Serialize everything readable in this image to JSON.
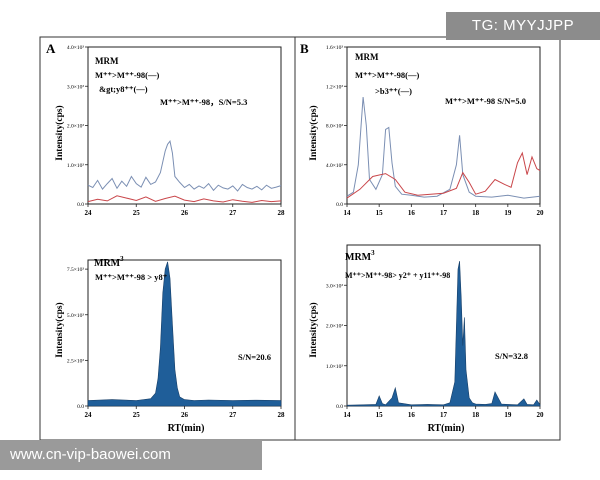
{
  "watermarks": {
    "top": "TG: MYYJJPP",
    "bottom": "www.cn-vip-baowei.com"
  },
  "shared_axes": {
    "y_label": "Intensity(cps)",
    "x_label": "RT(min)"
  },
  "colors": {
    "blue_trace": "#7b8fb3",
    "red_trace": "#c9464a",
    "fill": "#1f5e99",
    "fill_edge": "#173f68"
  },
  "panels": [
    {
      "letter": "A",
      "label_mode": "MRM",
      "label_sup": "",
      "transition_line1": "M⁺⁺>M⁺⁺-98(—)",
      "transition_line2": "&gt;y8⁺⁺(—)",
      "sn_text": "M⁺⁺>M⁺⁺-98，S/N=5.3"
    },
    {
      "letter": "",
      "label_mode": "MRM",
      "label_sup": "3",
      "transition_line1": "M⁺⁺>M⁺⁺-98 > y8⁺",
      "sn_text": "S/N=20.6"
    },
    {
      "letter": "B",
      "label_mode": "MRM",
      "label_sup": "",
      "transition_line1": "M⁺⁺>M⁺⁺-98(—)",
      "transition_line2": ">b3⁺⁺(—)",
      "sn_text": "M⁺⁺>M⁺⁺-98  S/N=5.0"
    },
    {
      "letter": "",
      "label_mode": "MRM",
      "label_sup": "3",
      "transition_line1": "M⁺⁺>M⁺⁺-98> y2⁺ + y11⁺⁺-98",
      "sn_text": "S/N=32.8"
    }
  ],
  "chart_data": [
    {
      "type": "line",
      "panel": "A-top",
      "title": "MRM",
      "xlabel": "",
      "ylabel": "Intensity(cps)",
      "xlim": [
        24,
        28
      ],
      "ylim": [
        0,
        4000
      ],
      "xticks": [
        24,
        25,
        26,
        27,
        28
      ],
      "yticks": [
        0,
        1000,
        2000,
        3000,
        4000
      ],
      "ytick_labels": [
        "0.0",
        "1.0×10³",
        "2.0×10³",
        "3.0×10³",
        "4.0×10³"
      ],
      "series": [
        {
          "name": "M++>M++-98 (blue)",
          "color": "#7b8fb3",
          "x": [
            24.0,
            24.1,
            24.2,
            24.3,
            24.4,
            24.5,
            24.6,
            24.7,
            24.8,
            24.9,
            25.0,
            25.1,
            25.2,
            25.3,
            25.4,
            25.5,
            25.6,
            25.65,
            25.7,
            25.75,
            25.8,
            25.9,
            26.0,
            26.1,
            26.2,
            26.3,
            26.4,
            26.5,
            26.6,
            26.7,
            26.8,
            26.9,
            27.0,
            27.1,
            27.2,
            27.3,
            27.4,
            27.5,
            27.6,
            27.7,
            27.8,
            27.9,
            28.0
          ],
          "y": [
            480,
            420,
            600,
            380,
            520,
            650,
            400,
            580,
            450,
            700,
            520,
            430,
            680,
            500,
            560,
            800,
            1350,
            1520,
            1600,
            1300,
            700,
            550,
            420,
            500,
            380,
            460,
            400,
            520,
            350,
            480,
            410,
            380,
            460,
            330,
            500,
            420,
            380,
            450,
            360,
            480,
            400,
            430,
            470
          ]
        },
        {
          "name": ">y8++ (red)",
          "color": "#c9464a",
          "x": [
            24.0,
            24.2,
            24.4,
            24.6,
            24.8,
            25.0,
            25.2,
            25.4,
            25.6,
            25.8,
            26.0,
            26.2,
            26.4,
            26.6,
            26.8,
            27.0,
            27.2,
            27.4,
            27.6,
            27.8,
            28.0
          ],
          "y": [
            60,
            120,
            80,
            210,
            150,
            90,
            180,
            70,
            140,
            200,
            100,
            60,
            130,
            80,
            50,
            110,
            70,
            40,
            90,
            60,
            80
          ]
        }
      ]
    },
    {
      "type": "area",
      "panel": "A-bottom",
      "title": "MRM3",
      "xlabel": "",
      "ylabel": "Intensity(cps)",
      "xlim": [
        24,
        28
      ],
      "ylim": [
        0,
        8000
      ],
      "xticks": [
        24,
        25,
        26,
        27,
        28
      ],
      "yticks": [
        0,
        2500,
        5000,
        7500
      ],
      "ytick_labels": [
        "0.0",
        "2.5×10³",
        "5.0×10³",
        "7.5×10³"
      ],
      "series": [
        {
          "name": "MRM3 y8+",
          "color": "#1f5e99",
          "x": [
            24.0,
            24.5,
            25.0,
            25.3,
            25.4,
            25.45,
            25.5,
            25.55,
            25.6,
            25.65,
            25.7,
            25.75,
            25.8,
            25.85,
            25.9,
            26.0,
            26.2,
            26.5,
            27.0,
            27.5,
            28.0
          ],
          "y": [
            300,
            350,
            300,
            400,
            700,
            1500,
            3200,
            6200,
            7500,
            7900,
            7000,
            4500,
            2000,
            1000,
            500,
            350,
            300,
            330,
            300,
            320,
            300
          ]
        }
      ]
    },
    {
      "type": "line",
      "panel": "B-top",
      "title": "MRM",
      "xlabel": "",
      "ylabel": "Intensity(cps)",
      "xlim": [
        14,
        20
      ],
      "ylim": [
        0,
        1600
      ],
      "xticks": [
        14,
        15,
        16,
        17,
        18,
        19,
        20
      ],
      "yticks": [
        0,
        400,
        800,
        1200,
        1600
      ],
      "ytick_labels": [
        "0.0",
        "4.0×10²",
        "8.0×10²",
        "1.2×10³",
        "1.6×10³"
      ],
      "series": [
        {
          "name": "M++>M++-98 (blue)",
          "color": "#7b8fb3",
          "x": [
            14.0,
            14.2,
            14.35,
            14.5,
            14.6,
            14.7,
            14.9,
            15.1,
            15.2,
            15.3,
            15.4,
            15.5,
            15.7,
            16.0,
            16.4,
            16.8,
            17.2,
            17.4,
            17.5,
            17.6,
            17.8,
            18.0,
            18.5,
            19.0,
            19.5,
            20.0
          ],
          "y": [
            80,
            120,
            400,
            1090,
            800,
            250,
            150,
            300,
            760,
            780,
            420,
            180,
            100,
            90,
            70,
            80,
            150,
            400,
            700,
            300,
            120,
            80,
            70,
            90,
            60,
            80
          ]
        },
        {
          "name": ">b3++ (red)",
          "color": "#c9464a",
          "x": [
            14.0,
            14.4,
            14.8,
            15.2,
            15.5,
            15.8,
            16.2,
            16.6,
            17.0,
            17.4,
            17.6,
            17.8,
            18.0,
            18.3,
            18.6,
            18.9,
            19.1,
            19.3,
            19.45,
            19.6,
            19.75,
            19.9,
            20.0
          ],
          "y": [
            60,
            150,
            280,
            310,
            250,
            120,
            90,
            100,
            110,
            160,
            320,
            220,
            100,
            130,
            250,
            200,
            170,
            420,
            520,
            300,
            480,
            360,
            340
          ]
        }
      ]
    },
    {
      "type": "area",
      "panel": "B-bottom",
      "title": "MRM3",
      "xlabel": "RT(min)",
      "ylabel": "Intensity(cps)",
      "xlim": [
        14,
        20
      ],
      "ylim": [
        0,
        4000
      ],
      "xticks": [
        14,
        15,
        16,
        17,
        18,
        19,
        20
      ],
      "yticks": [
        0,
        1000,
        2000,
        3000
      ],
      "ytick_labels": [
        "0.0",
        "1.0×10³",
        "2.0×10³",
        "3.0×10³"
      ],
      "series": [
        {
          "name": "MRM3 y2+ + y11++-98",
          "color": "#1f5e99",
          "x": [
            14.0,
            14.5,
            14.9,
            15.0,
            15.1,
            15.2,
            15.4,
            15.5,
            15.6,
            16.0,
            16.5,
            17.0,
            17.2,
            17.35,
            17.4,
            17.45,
            17.5,
            17.55,
            17.6,
            17.65,
            17.7,
            17.8,
            17.9,
            18.0,
            18.3,
            18.5,
            18.6,
            18.8,
            19.0,
            19.3,
            19.5,
            19.6,
            19.8,
            19.9,
            20.0
          ],
          "y": [
            20,
            30,
            40,
            250,
            60,
            30,
            200,
            450,
            80,
            30,
            40,
            30,
            80,
            600,
            2000,
            3400,
            3600,
            2700,
            1500,
            2200,
            900,
            200,
            80,
            50,
            40,
            60,
            350,
            50,
            40,
            30,
            180,
            40,
            30,
            150,
            30
          ]
        }
      ]
    }
  ]
}
